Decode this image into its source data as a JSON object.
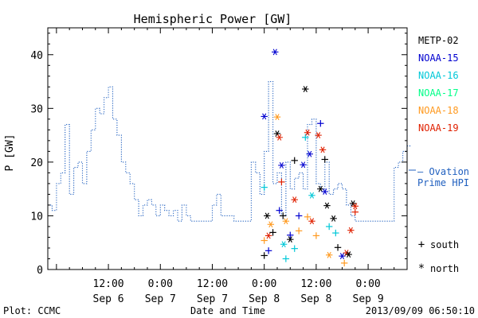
{
  "chart_data": {
    "type": "line",
    "title": "Hemispheric Power [GW]",
    "xlabel": "Date and Time",
    "ylabel": "P [GW]",
    "ylim": [
      0,
      45
    ],
    "xlim": [
      "2013-09-05 22:00",
      "2013-09-09 09:00"
    ],
    "x_ticks": [
      {
        "t": "2013-09-06 12:00",
        "time": "12:00",
        "date": "Sep 6"
      },
      {
        "t": "2013-09-07 00:00",
        "time": "0:00",
        "date": "Sep 7"
      },
      {
        "t": "2013-09-07 12:00",
        "time": "12:00",
        "date": "Sep 7"
      },
      {
        "t": "2013-09-08 00:00",
        "time": "0:00",
        "date": "Sep 8"
      },
      {
        "t": "2013-09-08 12:00",
        "time": "12:00",
        "date": "Sep 8"
      },
      {
        "t": "2013-09-09 00:00",
        "time": "0:00",
        "date": "Sep 9"
      }
    ],
    "y_ticks": [
      0,
      10,
      20,
      30,
      40
    ],
    "ovation": {
      "name": "— Ovation Prime HPI",
      "color": "#1f5fbf",
      "x": [
        "2013-09-05 22:00",
        "2013-09-05 23:00",
        "2013-09-06 00:00",
        "2013-09-06 01:00",
        "2013-09-06 02:00",
        "2013-09-06 03:00",
        "2013-09-06 04:00",
        "2013-09-06 05:00",
        "2013-09-06 06:00",
        "2013-09-06 07:00",
        "2013-09-06 08:00",
        "2013-09-06 09:00",
        "2013-09-06 10:00",
        "2013-09-06 11:00",
        "2013-09-06 12:00",
        "2013-09-06 13:00",
        "2013-09-06 14:00",
        "2013-09-06 15:00",
        "2013-09-06 16:00",
        "2013-09-06 17:00",
        "2013-09-06 18:00",
        "2013-09-06 19:00",
        "2013-09-06 20:00",
        "2013-09-06 21:00",
        "2013-09-06 22:00",
        "2013-09-06 23:00",
        "2013-09-07 00:00",
        "2013-09-07 01:00",
        "2013-09-07 02:00",
        "2013-09-07 03:00",
        "2013-09-07 04:00",
        "2013-09-07 05:00",
        "2013-09-07 06:00",
        "2013-09-07 07:00",
        "2013-09-07 08:00",
        "2013-09-07 09:00",
        "2013-09-07 10:00",
        "2013-09-07 11:00",
        "2013-09-07 12:00",
        "2013-09-07 13:00",
        "2013-09-07 14:00",
        "2013-09-07 15:00",
        "2013-09-07 16:00",
        "2013-09-07 17:00",
        "2013-09-07 18:00",
        "2013-09-07 19:00",
        "2013-09-07 20:00",
        "2013-09-07 21:00",
        "2013-09-07 22:00",
        "2013-09-07 23:00",
        "2013-09-08 00:00",
        "2013-09-08 01:00",
        "2013-09-08 02:00",
        "2013-09-08 03:00",
        "2013-09-08 04:00",
        "2013-09-08 05:00",
        "2013-09-08 06:00",
        "2013-09-08 07:00",
        "2013-09-08 08:00",
        "2013-09-08 09:00",
        "2013-09-08 10:00",
        "2013-09-08 11:00",
        "2013-09-08 12:00",
        "2013-09-08 13:00",
        "2013-09-08 14:00",
        "2013-09-08 15:00",
        "2013-09-08 16:00",
        "2013-09-08 17:00",
        "2013-09-08 18:00",
        "2013-09-08 19:00",
        "2013-09-08 20:00",
        "2013-09-08 21:00",
        "2013-09-08 22:00",
        "2013-09-08 23:00",
        "2013-09-09 00:00",
        "2013-09-09 01:00",
        "2013-09-09 02:00",
        "2013-09-09 03:00",
        "2013-09-09 04:00",
        "2013-09-09 05:00",
        "2013-09-09 06:00",
        "2013-09-09 07:00",
        "2013-09-09 08:00",
        "2013-09-09 09:00"
      ],
      "y": [
        12,
        11,
        16,
        18,
        27,
        14,
        19,
        20,
        16,
        22,
        26,
        30,
        29,
        32,
        34,
        28,
        25,
        20,
        18,
        16,
        13,
        10,
        12,
        13,
        12,
        10,
        12,
        11,
        10,
        11,
        9,
        12,
        10,
        9,
        9,
        9,
        9,
        9,
        12,
        14,
        10,
        10,
        10,
        9,
        9,
        9,
        9,
        20,
        18,
        14,
        22,
        35,
        16,
        18,
        10,
        20,
        15,
        17,
        18,
        15,
        27,
        28,
        16,
        15,
        20,
        14,
        15,
        16,
        15,
        12,
        10,
        9,
        9,
        9,
        9,
        9,
        9,
        9,
        9,
        9,
        19,
        20,
        22,
        23
      ]
    },
    "legend": [
      {
        "name": "METP-02",
        "color": "#000000"
      },
      {
        "name": "NOAA-15",
        "color": "#0000d0"
      },
      {
        "name": "NOAA-16",
        "color": "#00c8d8"
      },
      {
        "name": "NOAA-17",
        "color": "#00ff88"
      },
      {
        "name": "NOAA-18",
        "color": "#ff9a20"
      },
      {
        "name": "NOAA-19",
        "color": "#e02000"
      }
    ],
    "marker_key": [
      {
        "symbol": "+",
        "label": "south"
      },
      {
        "symbol": "*",
        "label": "north"
      }
    ],
    "points": [
      [
        "2013-09-08 00:00",
        15.3,
        "cyan",
        "+"
      ],
      [
        "2013-09-08 00:00",
        28.5,
        "blue",
        "*"
      ],
      [
        "2013-09-08 00:00",
        2.6,
        "black",
        "+"
      ],
      [
        "2013-09-08 00:00",
        5.4,
        "orange",
        "+"
      ],
      [
        "2013-09-08 00:40",
        10.0,
        "black",
        "*"
      ],
      [
        "2013-09-08 01:00",
        6.3,
        "red",
        "*"
      ],
      [
        "2013-09-08 01:00",
        3.5,
        "blue",
        "+"
      ],
      [
        "2013-09-08 01:30",
        8.4,
        "orange",
        "*"
      ],
      [
        "2013-09-08 02:00",
        6.9,
        "black",
        "+"
      ],
      [
        "2013-09-08 02:30",
        40.5,
        "blue",
        "*"
      ],
      [
        "2013-09-08 03:00",
        28.4,
        "orange",
        "*"
      ],
      [
        "2013-09-08 03:00",
        25.3,
        "black",
        "*"
      ],
      [
        "2013-09-08 03:30",
        24.6,
        "red",
        "*"
      ],
      [
        "2013-09-08 03:30",
        11.0,
        "blue",
        "+"
      ],
      [
        "2013-09-08 04:00",
        19.4,
        "blue",
        "*"
      ],
      [
        "2013-09-08 04:00",
        16.3,
        "red",
        "+"
      ],
      [
        "2013-09-08 04:20",
        10.0,
        "black",
        "+"
      ],
      [
        "2013-09-08 04:30",
        4.7,
        "cyan",
        "*"
      ],
      [
        "2013-09-08 05:00",
        9.0,
        "orange",
        "*"
      ],
      [
        "2013-09-08 05:00",
        2.0,
        "cyan",
        "+"
      ],
      [
        "2013-09-08 06:00",
        6.4,
        "blue",
        "+"
      ],
      [
        "2013-09-08 06:00",
        5.6,
        "black",
        "*"
      ],
      [
        "2013-09-08 07:00",
        20.3,
        "black",
        "+"
      ],
      [
        "2013-09-08 07:00",
        13.0,
        "red",
        "*"
      ],
      [
        "2013-09-08 07:00",
        3.9,
        "cyan",
        "+"
      ],
      [
        "2013-09-08 08:00",
        10.0,
        "blue",
        "+"
      ],
      [
        "2013-09-08 08:00",
        7.2,
        "orange",
        "+"
      ],
      [
        "2013-09-08 09:00",
        19.5,
        "blue",
        "*"
      ],
      [
        "2013-09-08 09:30",
        33.6,
        "black",
        "*"
      ],
      [
        "2013-09-08 09:30",
        24.6,
        "cyan",
        "+"
      ],
      [
        "2013-09-08 10:00",
        25.5,
        "red",
        "*"
      ],
      [
        "2013-09-08 10:00",
        9.8,
        "orange",
        "+"
      ],
      [
        "2013-09-08 10:30",
        21.5,
        "blue",
        "*"
      ],
      [
        "2013-09-08 11:00",
        13.8,
        "cyan",
        "*"
      ],
      [
        "2013-09-08 11:00",
        9.0,
        "red",
        "*"
      ],
      [
        "2013-09-08 12:00",
        6.3,
        "orange",
        "+"
      ],
      [
        "2013-09-08 12:30",
        25.0,
        "red",
        "*"
      ],
      [
        "2013-09-08 13:00",
        27.2,
        "blue",
        "+"
      ],
      [
        "2013-09-08 13:00",
        15.0,
        "black",
        "*"
      ],
      [
        "2013-09-08 13:30",
        22.3,
        "red",
        "*"
      ],
      [
        "2013-09-08 14:00",
        14.5,
        "blue",
        "*"
      ],
      [
        "2013-09-08 14:00",
        20.5,
        "black",
        "+"
      ],
      [
        "2013-09-08 14:30",
        11.9,
        "black",
        "*"
      ],
      [
        "2013-09-08 15:00",
        8.0,
        "cyan",
        "+"
      ],
      [
        "2013-09-08 15:00",
        2.7,
        "orange",
        "*"
      ],
      [
        "2013-09-08 16:00",
        9.5,
        "black",
        "*"
      ],
      [
        "2013-09-08 16:30",
        6.8,
        "cyan",
        "+"
      ],
      [
        "2013-09-08 17:00",
        4.1,
        "black",
        "+"
      ],
      [
        "2013-09-08 18:00",
        2.5,
        "blue",
        "*"
      ],
      [
        "2013-09-08 18:30",
        1.2,
        "orange",
        "+"
      ],
      [
        "2013-09-08 19:00",
        3.1,
        "red",
        "*"
      ],
      [
        "2013-09-08 19:30",
        2.8,
        "black",
        "*"
      ],
      [
        "2013-09-08 20:00",
        7.3,
        "red",
        "*"
      ],
      [
        "2013-09-08 20:30",
        12.3,
        "black",
        "*"
      ],
      [
        "2013-09-08 21:00",
        11.8,
        "red",
        "*"
      ],
      [
        "2013-09-08 21:00",
        10.7,
        "red",
        "+"
      ]
    ],
    "grid": false,
    "legend_position": "right"
  },
  "footer": {
    "left": "Plot: CCMC",
    "right": "2013/09/09 06:50:10"
  }
}
